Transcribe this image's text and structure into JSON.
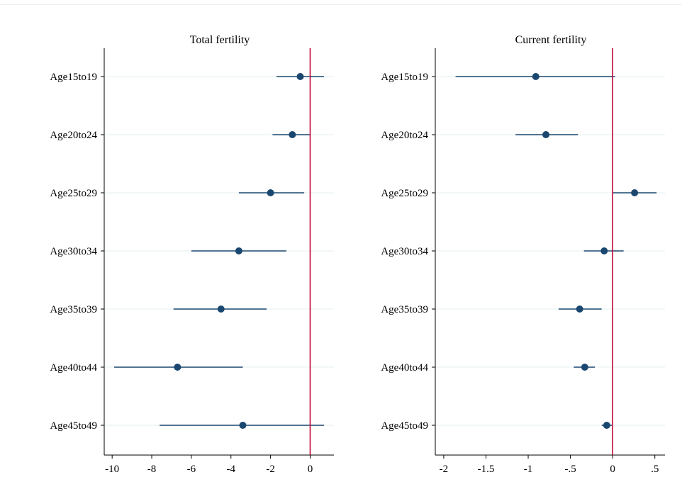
{
  "chart_data": [
    {
      "type": "coefficient_plot",
      "title": "Total fertility",
      "categories": [
        "Age15to19",
        "Age20to24",
        "Age25to29",
        "Age30to34",
        "Age35to39",
        "Age40to44",
        "Age45to49"
      ],
      "estimates": [
        -0.5,
        -0.9,
        -2.0,
        -3.6,
        -4.5,
        -6.7,
        -3.4
      ],
      "ci_low": [
        -1.7,
        -1.9,
        -3.6,
        -6.0,
        -6.9,
        -9.9,
        -7.6
      ],
      "ci_high": [
        0.7,
        0.0,
        -0.3,
        -1.2,
        -2.2,
        -3.4,
        0.7
      ],
      "xlim": [
        -10.4,
        1.2
      ],
      "xticks": [
        -10,
        -8,
        -6,
        -4,
        -2,
        0
      ],
      "xtick_labels": [
        "-10",
        "-8",
        "-6",
        "-4",
        "-2",
        "0"
      ],
      "reference_line": 0,
      "grid": true
    },
    {
      "type": "coefficient_plot",
      "title": "Current fertility",
      "categories": [
        "Age15to19",
        "Age20to24",
        "Age25to29",
        "Age30to34",
        "Age35to39",
        "Age40to44",
        "Age45to49"
      ],
      "estimates": [
        -0.91,
        -0.79,
        0.26,
        -0.1,
        -0.39,
        -0.33,
        -0.07
      ],
      "ci_low": [
        -1.86,
        -1.15,
        0.0,
        -0.34,
        -0.64,
        -0.46,
        -0.13
      ],
      "ci_high": [
        0.03,
        -0.41,
        0.52,
        0.13,
        -0.13,
        -0.21,
        -0.01
      ],
      "xlim": [
        -2.1,
        0.62
      ],
      "xticks": [
        -2,
        -1.5,
        -1,
        -0.5,
        0,
        0.5
      ],
      "xtick_labels": [
        "-2",
        "-1.5",
        "-1",
        "-.5",
        "0",
        ".5"
      ],
      "reference_line": 0,
      "grid": true
    }
  ],
  "colors": {
    "marker": "#1a476f",
    "ci_line": "#1a476f",
    "reference": "#c10534",
    "grid": "#eaf2f3",
    "axis": "#000000"
  }
}
